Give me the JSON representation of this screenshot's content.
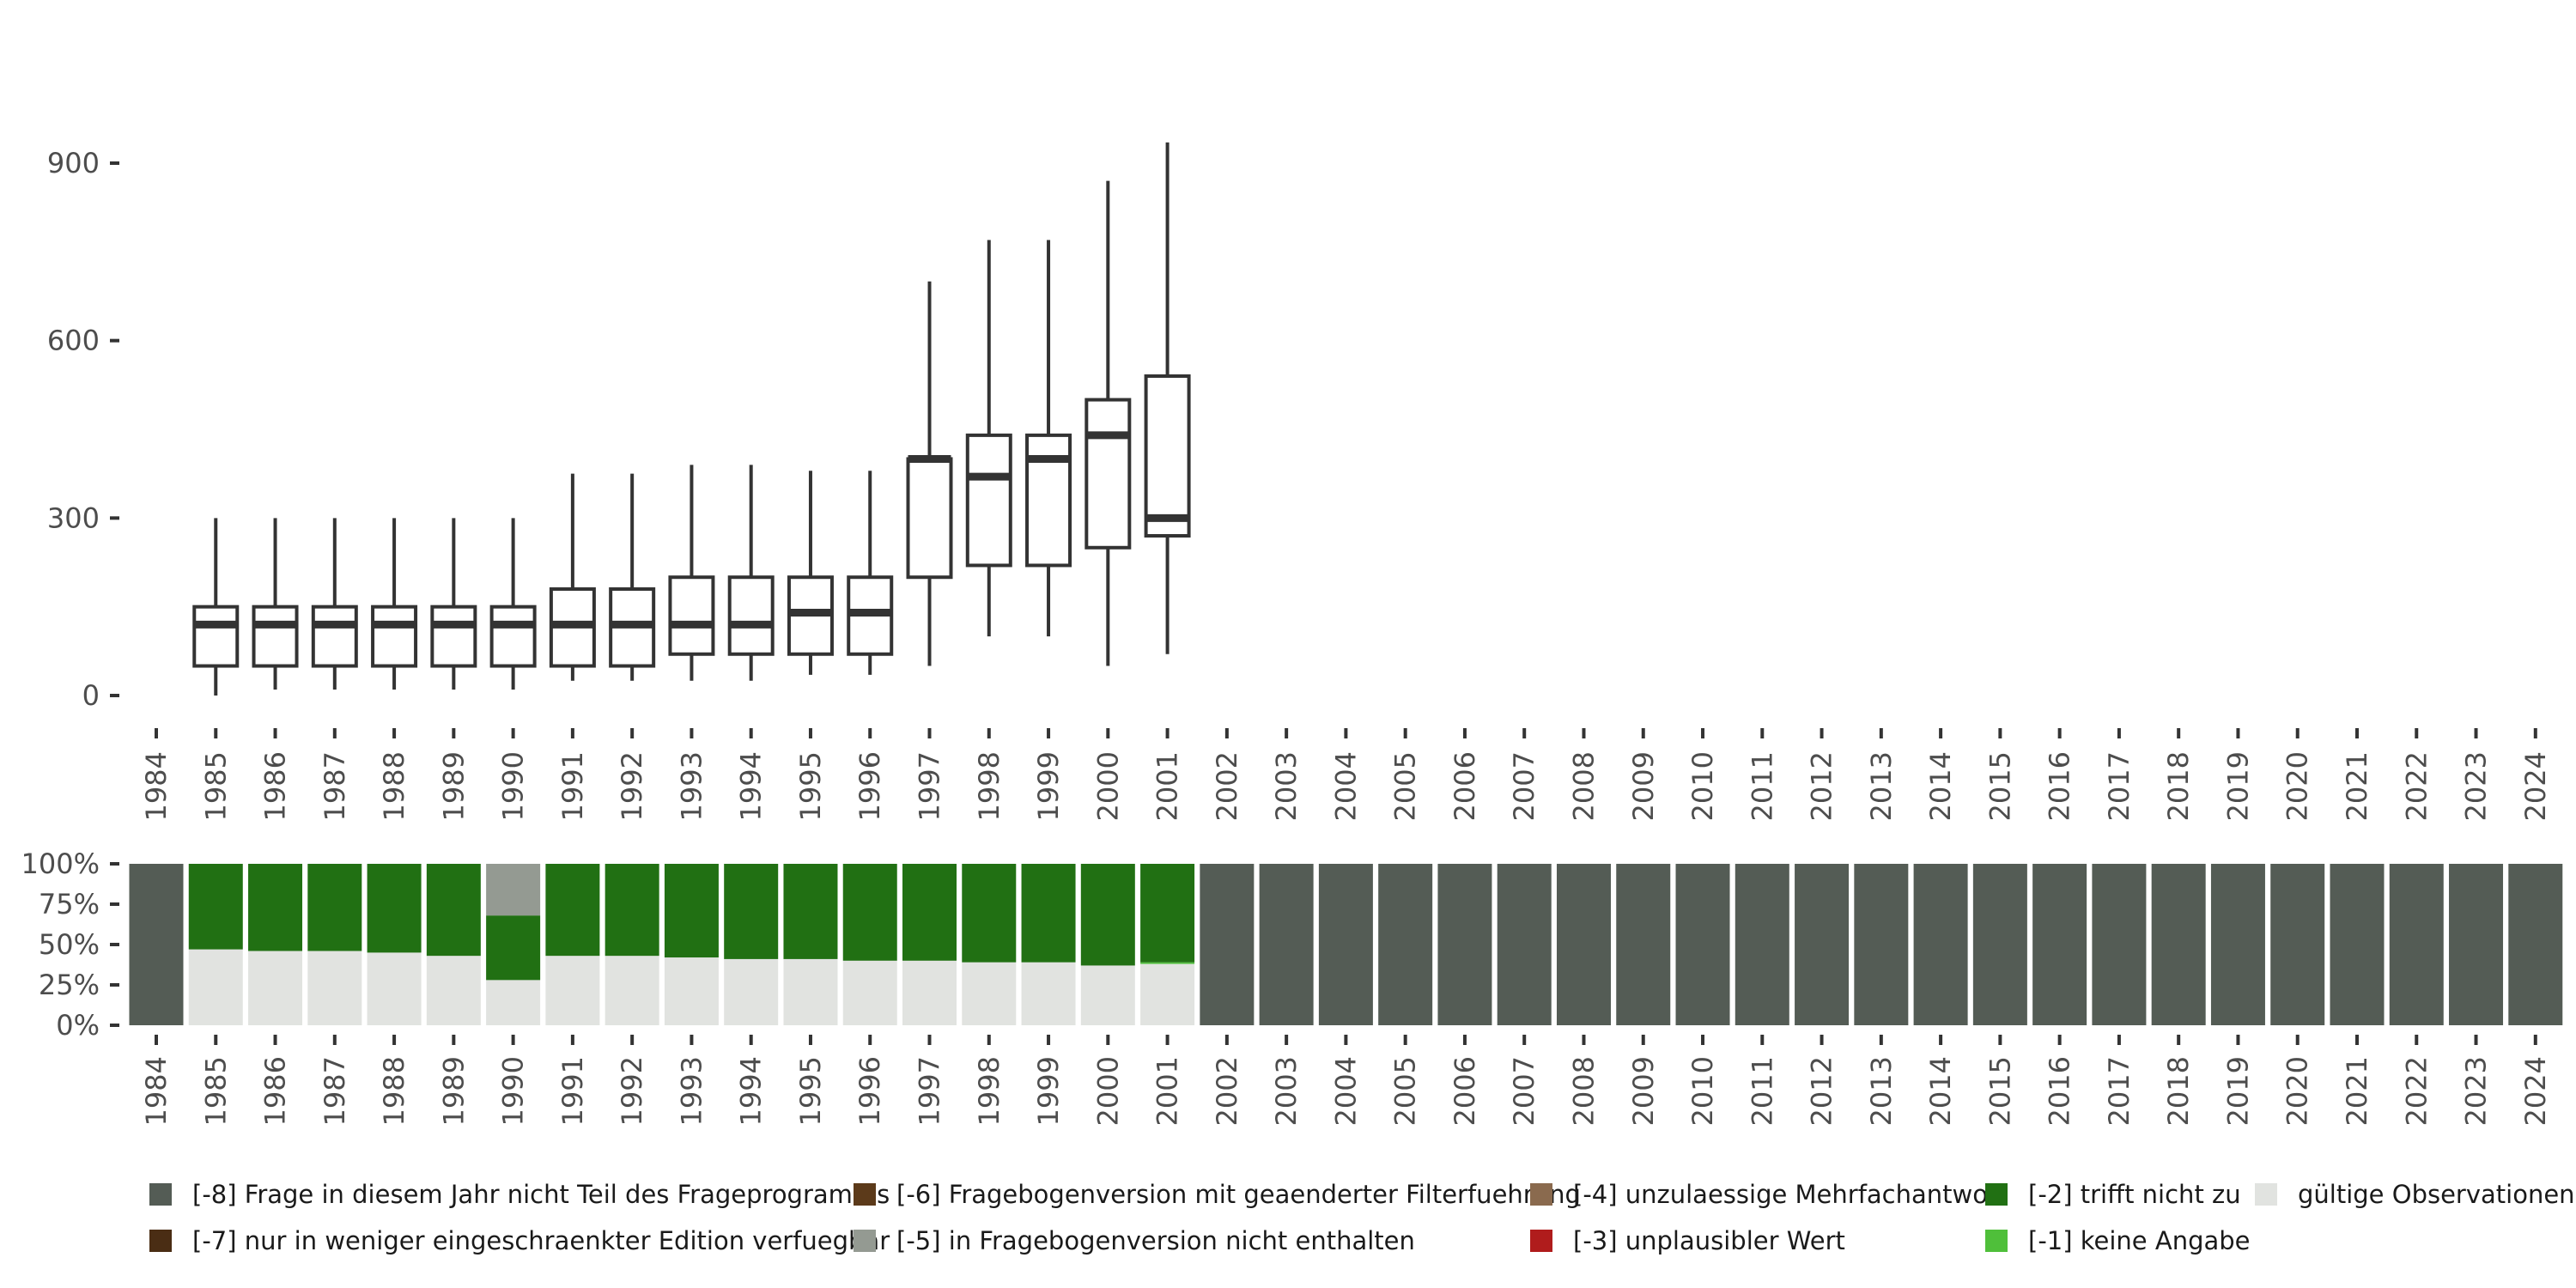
{
  "chart_data": [
    {
      "type": "boxplot",
      "title": "",
      "xlabel": "",
      "ylabel": "",
      "ylim": [
        0,
        935
      ],
      "yticks": [
        0,
        300,
        600,
        900
      ],
      "categories": [
        "1984",
        "1985",
        "1986",
        "1987",
        "1988",
        "1989",
        "1990",
        "1991",
        "1992",
        "1993",
        "1994",
        "1995",
        "1996",
        "1997",
        "1998",
        "1999",
        "2000",
        "2001",
        "2002",
        "2003",
        "2004",
        "2005",
        "2006",
        "2007",
        "2008",
        "2009",
        "2010",
        "2011",
        "2012",
        "2013",
        "2014",
        "2015",
        "2016",
        "2017",
        "2018",
        "2019",
        "2020",
        "2021",
        "2022",
        "2023",
        "2024"
      ],
      "boxes": [
        {
          "year": "1985",
          "whisker_low": 0,
          "q1": 50,
          "median": 120,
          "q3": 150,
          "whisker_high": 300
        },
        {
          "year": "1986",
          "whisker_low": 10,
          "q1": 50,
          "median": 120,
          "q3": 150,
          "whisker_high": 300
        },
        {
          "year": "1987",
          "whisker_low": 10,
          "q1": 50,
          "median": 120,
          "q3": 150,
          "whisker_high": 300
        },
        {
          "year": "1988",
          "whisker_low": 10,
          "q1": 50,
          "median": 120,
          "q3": 150,
          "whisker_high": 300
        },
        {
          "year": "1989",
          "whisker_low": 10,
          "q1": 50,
          "median": 120,
          "q3": 150,
          "whisker_high": 300
        },
        {
          "year": "1990",
          "whisker_low": 10,
          "q1": 50,
          "median": 120,
          "q3": 150,
          "whisker_high": 300
        },
        {
          "year": "1991",
          "whisker_low": 25,
          "q1": 50,
          "median": 120,
          "q3": 180,
          "whisker_high": 375
        },
        {
          "year": "1992",
          "whisker_low": 25,
          "q1": 50,
          "median": 120,
          "q3": 180,
          "whisker_high": 375
        },
        {
          "year": "1993",
          "whisker_low": 25,
          "q1": 70,
          "median": 120,
          "q3": 200,
          "whisker_high": 390
        },
        {
          "year": "1994",
          "whisker_low": 25,
          "q1": 70,
          "median": 120,
          "q3": 200,
          "whisker_high": 390
        },
        {
          "year": "1995",
          "whisker_low": 35,
          "q1": 70,
          "median": 140,
          "q3": 200,
          "whisker_high": 380
        },
        {
          "year": "1996",
          "whisker_low": 35,
          "q1": 70,
          "median": 140,
          "q3": 200,
          "whisker_high": 380
        },
        {
          "year": "1997",
          "whisker_low": 50,
          "q1": 200,
          "median": 400,
          "q3": 400,
          "whisker_high": 700
        },
        {
          "year": "1998",
          "whisker_low": 100,
          "q1": 220,
          "median": 370,
          "q3": 440,
          "whisker_high": 770
        },
        {
          "year": "1999",
          "whisker_low": 100,
          "q1": 220,
          "median": 400,
          "q3": 440,
          "whisker_high": 770
        },
        {
          "year": "2000",
          "whisker_low": 50,
          "q1": 250,
          "median": 440,
          "q3": 500,
          "whisker_high": 870
        },
        {
          "year": "2001",
          "whisker_low": 70,
          "q1": 270,
          "median": 300,
          "q3": 540,
          "whisker_high": 935
        }
      ]
    },
    {
      "type": "stacked_bar",
      "title": "",
      "xlabel": "",
      "ylabel": "",
      "ylim": [
        0,
        1
      ],
      "yticks": [
        "0%",
        "25%",
        "50%",
        "75%",
        "100%"
      ],
      "categories": [
        "1984",
        "1985",
        "1986",
        "1987",
        "1988",
        "1989",
        "1990",
        "1991",
        "1992",
        "1993",
        "1994",
        "1995",
        "1996",
        "1997",
        "1998",
        "1999",
        "2000",
        "2001",
        "2002",
        "2003",
        "2004",
        "2005",
        "2006",
        "2007",
        "2008",
        "2009",
        "2010",
        "2011",
        "2012",
        "2013",
        "2014",
        "2015",
        "2016",
        "2017",
        "2018",
        "2019",
        "2020",
        "2021",
        "2022",
        "2023",
        "2024"
      ],
      "series_order": [
        "valid",
        "m1",
        "m2",
        "m5",
        "m8"
      ],
      "series": [
        {
          "key": "valid",
          "name": "gültige Observationen",
          "values": [
            0,
            0.47,
            0.46,
            0.46,
            0.45,
            0.43,
            0.28,
            0.43,
            0.43,
            0.42,
            0.41,
            0.41,
            0.4,
            0.4,
            0.39,
            0.39,
            0.37,
            0.38,
            0,
            0,
            0,
            0,
            0,
            0,
            0,
            0,
            0,
            0,
            0,
            0,
            0,
            0,
            0,
            0,
            0,
            0,
            0,
            0,
            0,
            0,
            0
          ]
        },
        {
          "key": "m1",
          "name": "[-1] keine Angabe",
          "values": [
            0,
            0,
            0,
            0,
            0,
            0,
            0,
            0,
            0,
            0,
            0,
            0,
            0,
            0,
            0,
            0,
            0,
            0.01,
            0,
            0,
            0,
            0,
            0,
            0,
            0,
            0,
            0,
            0,
            0,
            0,
            0,
            0,
            0,
            0,
            0,
            0,
            0,
            0,
            0,
            0,
            0
          ]
        },
        {
          "key": "m2",
          "name": "[-2] trifft nicht zu",
          "values": [
            0,
            0.53,
            0.54,
            0.54,
            0.55,
            0.57,
            0.4,
            0.57,
            0.57,
            0.58,
            0.59,
            0.59,
            0.6,
            0.6,
            0.61,
            0.61,
            0.63,
            0.61,
            0,
            0,
            0,
            0,
            0,
            0,
            0,
            0,
            0,
            0,
            0,
            0,
            0,
            0,
            0,
            0,
            0,
            0,
            0,
            0,
            0,
            0,
            0
          ]
        },
        {
          "key": "m5",
          "name": "[-5] in Fragebogenversion nicht enthalten",
          "values": [
            0,
            0,
            0,
            0,
            0,
            0,
            0.32,
            0,
            0,
            0,
            0,
            0,
            0,
            0,
            0,
            0,
            0,
            0,
            0,
            0,
            0,
            0,
            0,
            0,
            0,
            0,
            0,
            0,
            0,
            0,
            0,
            0,
            0,
            0,
            0,
            0,
            0,
            0,
            0,
            0,
            0
          ]
        },
        {
          "key": "m8",
          "name": "[-8] Frage in diesem Jahr nicht Teil des Frageprogramms",
          "values": [
            1,
            0,
            0,
            0,
            0,
            0,
            0,
            0,
            0,
            0,
            0,
            0,
            0,
            0,
            0,
            0,
            0,
            0,
            1,
            1,
            1,
            1,
            1,
            1,
            1,
            1,
            1,
            1,
            1,
            1,
            1,
            1,
            1,
            1,
            1,
            1,
            1,
            1,
            1,
            1,
            1
          ]
        }
      ]
    }
  ],
  "colors": {
    "m8": "#545c55",
    "m7": "#4a2d14",
    "m6": "#5c3a1a",
    "m5": "#949a92",
    "m4": "#8a6a4e",
    "m3": "#b01c1c",
    "m2": "#217013",
    "m1": "#4fbf3a",
    "valid": "#e1e3e0",
    "box_stroke": "#333333",
    "axis_text": "#4d4d4d"
  },
  "legend": {
    "items": [
      {
        "key": "m8",
        "label": "[-8] Frage in diesem Jahr nicht Teil des Frageprogramms"
      },
      {
        "key": "m6",
        "label": "[-6] Fragebogenversion mit geaenderter Filterfuehrung"
      },
      {
        "key": "m4",
        "label": "[-4] unzulaessige Mehrfachantwort"
      },
      {
        "key": "m2",
        "label": "[-2] trifft nicht zu"
      },
      {
        "key": "valid",
        "label": "gültige Observationen"
      },
      {
        "key": "m7",
        "label": "[-7] nur in weniger eingeschraenkter Edition verfuegbar"
      },
      {
        "key": "m5",
        "label": "[-5] in Fragebogenversion nicht enthalten"
      },
      {
        "key": "m3",
        "label": "[-3] unplausibler Wert"
      },
      {
        "key": "m1",
        "label": "[-1] keine Angabe"
      }
    ]
  }
}
